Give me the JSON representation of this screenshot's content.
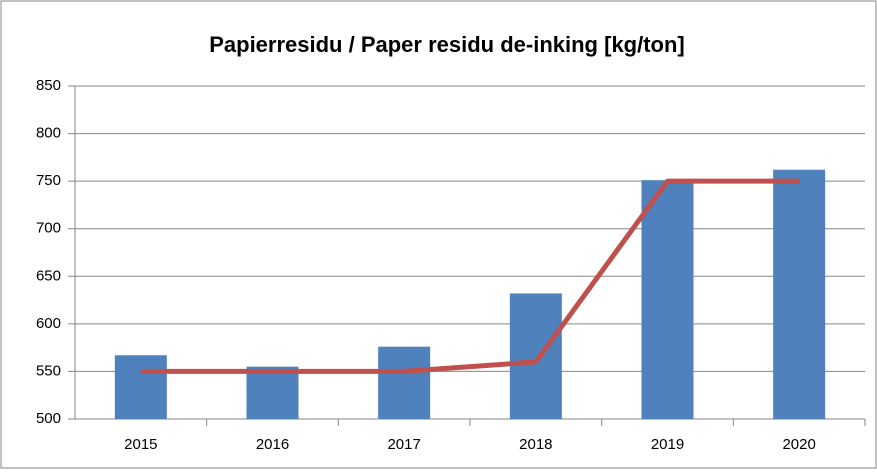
{
  "chart_data": {
    "type": "bar",
    "title": "Papierresidu / Paper residu de-inking [kg/ton]",
    "categories": [
      "2015",
      "2016",
      "2017",
      "2018",
      "2019",
      "2020"
    ],
    "series": [
      {
        "type": "bar",
        "color": "#4f81bd",
        "values": [
          567,
          555,
          576,
          632,
          751,
          762
        ]
      },
      {
        "type": "line",
        "color": "#c0504d",
        "values": [
          550,
          550,
          550,
          560,
          750,
          750
        ]
      }
    ],
    "ylim": [
      500,
      850
    ],
    "yticks": [
      500,
      550,
      600,
      650,
      700,
      750,
      800,
      850
    ],
    "grid": true
  }
}
